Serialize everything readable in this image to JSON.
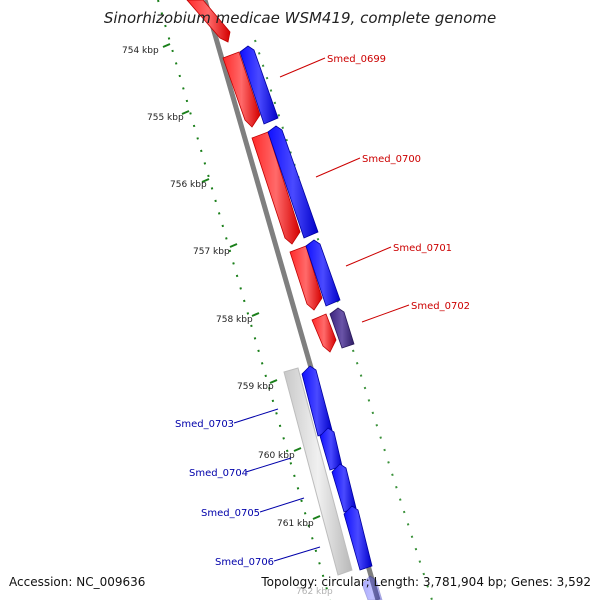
{
  "title": "Sinorhizobium medicae WSM419, complete genome",
  "footer": {
    "accession": "Accession: NC_009636",
    "summary": "Topology: circular; Length: 3,781,904 bp; Genes: 3,592"
  },
  "colors": {
    "forward_strand": "#ff0000",
    "reverse_strand": "#0000ff",
    "selected_reverse": "#4b2d8f",
    "backbone": "#7f7f7f",
    "ticks": "#1a7f1a",
    "forward_label": "#cc0000",
    "reverse_label": "#0000aa"
  },
  "ticks": [
    "754 kbp",
    "755 kbp",
    "756 kbp",
    "757 kbp",
    "758 kbp",
    "759 kbp",
    "760 kbp",
    "761 kbp",
    "762 kbp"
  ],
  "gene_labels_upper": [
    "Smed_0699",
    "Smed_0700",
    "Smed_0701",
    "Smed_0702"
  ],
  "gene_labels_lower": [
    "Smed_0703",
    "Smed_0704",
    "Smed_0705",
    "Smed_0706"
  ]
}
